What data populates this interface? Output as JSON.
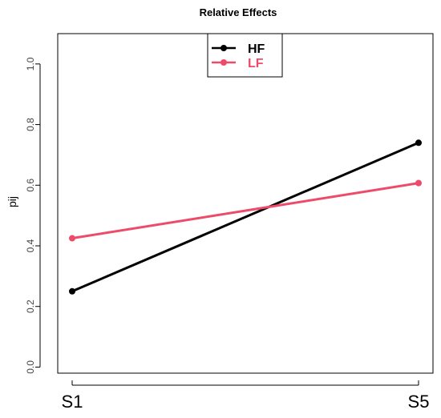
{
  "chart_data": {
    "type": "line",
    "title": "Relative Effects",
    "ylabel": "pij",
    "xlabel": "",
    "categories": [
      "S1",
      "S5"
    ],
    "ylim": [
      -0.02,
      1.1
    ],
    "yticks": [
      "0.0",
      "0.2",
      "0.4",
      "0.6",
      "0.8",
      "1.0"
    ],
    "grid": false,
    "legend_position": "top-center",
    "series": [
      {
        "name": "HF",
        "values": [
          0.25,
          0.74
        ],
        "color": "#000000"
      },
      {
        "name": "LF",
        "values": [
          0.425,
          0.607
        ],
        "color": "#ee4a6a"
      }
    ]
  }
}
